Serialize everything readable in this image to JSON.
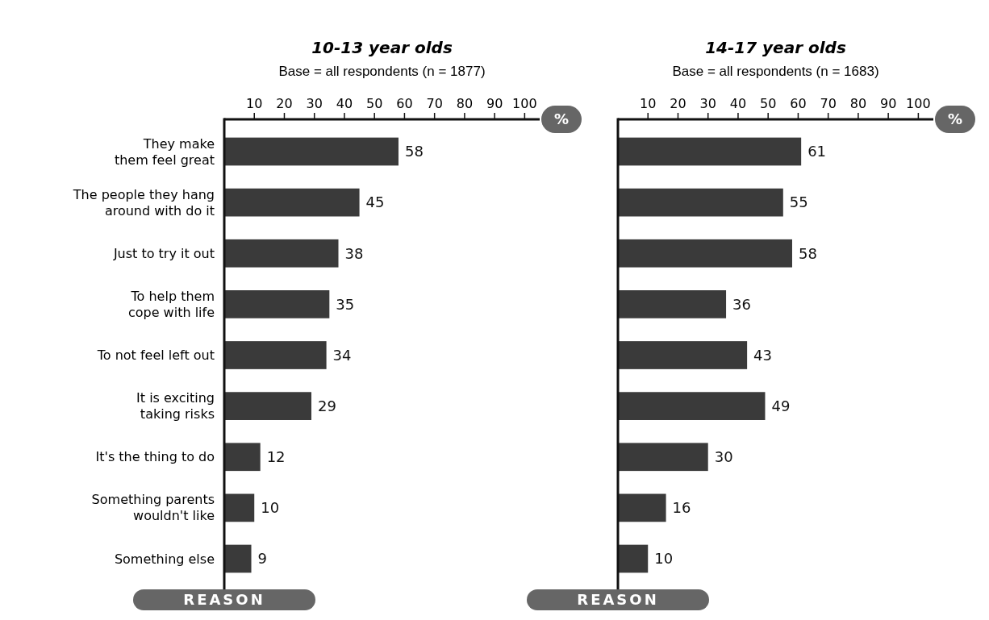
{
  "chart_data": [
    {
      "type": "bar",
      "orientation": "horizontal",
      "title": "10-13 year olds",
      "subtitle": "Base = all respondents (n = 1877)",
      "xlabel": "%",
      "ylabel": "REASON",
      "categories": [
        "They make\nthem feel great",
        "The people they hang\naround with do it",
        "Just to try it out",
        "To help them\ncope with life",
        "To not feel left out",
        "It is exciting\ntaking risks",
        "It's the thing to do",
        "Something parents\nwouldn't like",
        "Something else"
      ],
      "values": [
        58,
        45,
        38,
        35,
        34,
        29,
        12,
        10,
        9
      ],
      "color": "#3a3a3a",
      "xlim": [
        0,
        105
      ],
      "xticks": [
        10,
        20,
        30,
        40,
        50,
        60,
        70,
        80,
        90,
        100
      ],
      "data_labels": true
    },
    {
      "type": "bar",
      "orientation": "horizontal",
      "title": "14-17 year olds",
      "subtitle": "Base = all respondents (n = 1683)",
      "xlabel": "%",
      "ylabel": "REASON",
      "categories": [
        null,
        null,
        null,
        null,
        null,
        null,
        null,
        null,
        null
      ],
      "values": [
        61,
        55,
        58,
        36,
        43,
        49,
        30,
        16,
        10
      ],
      "color": "#3a3a3a",
      "xlim": [
        0,
        105
      ],
      "xticks": [
        10,
        20,
        30,
        40,
        50,
        60,
        70,
        80,
        90,
        100
      ],
      "data_labels": true
    }
  ]
}
